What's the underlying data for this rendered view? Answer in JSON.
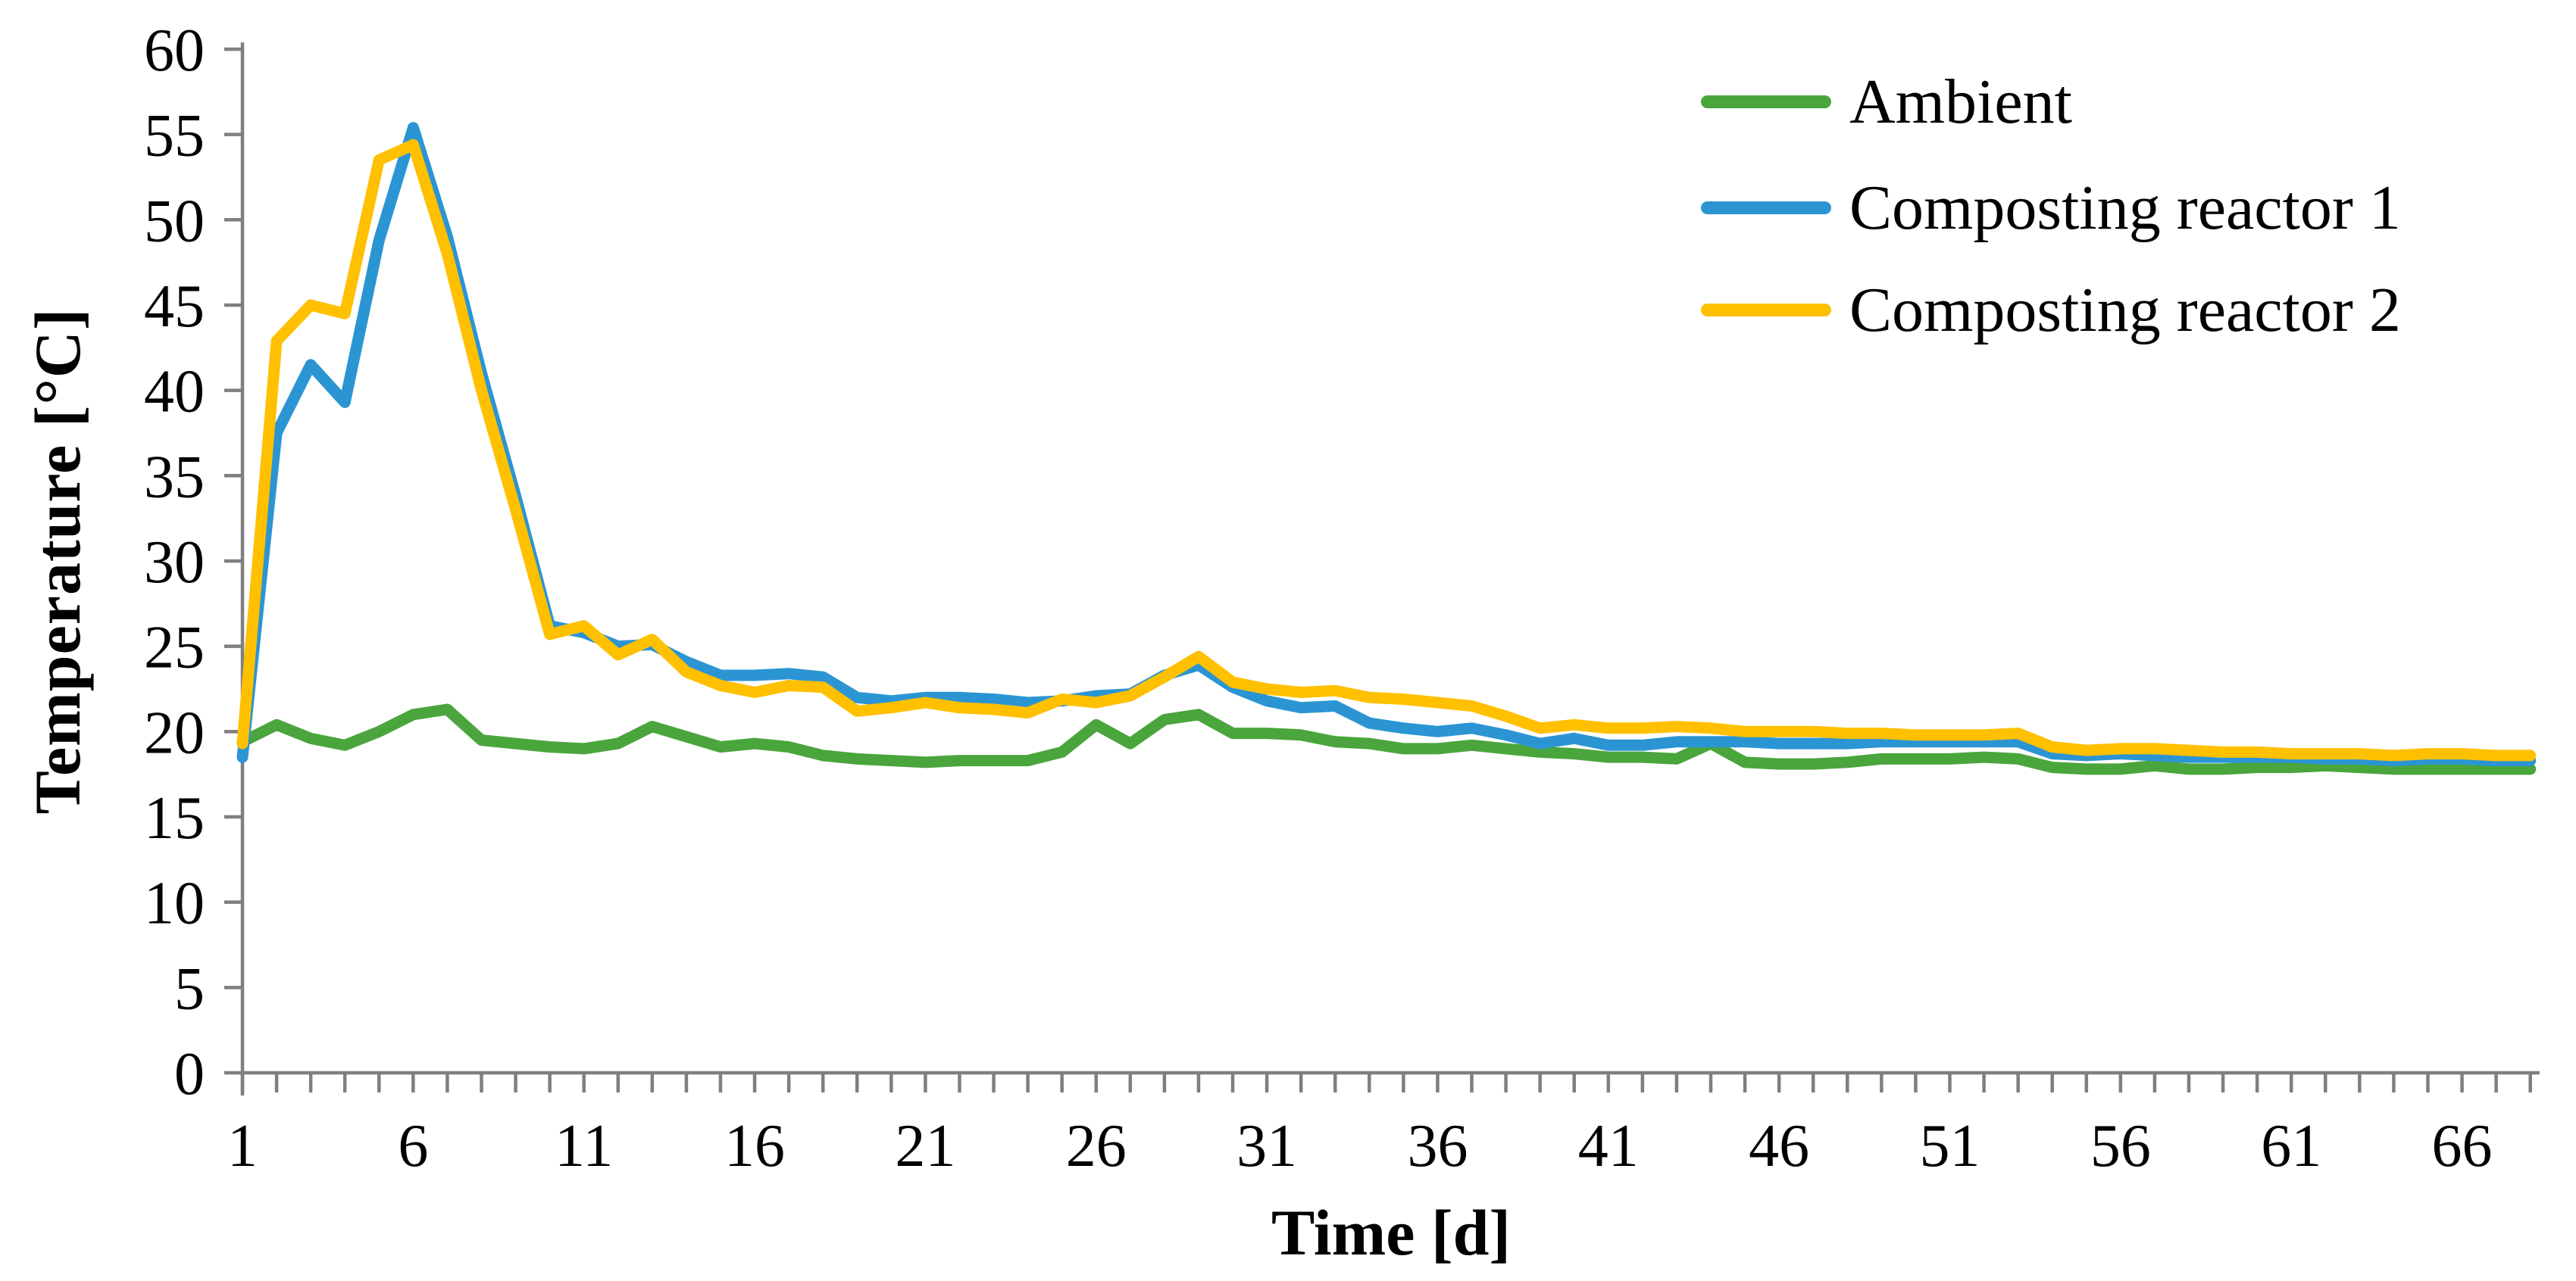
{
  "chart_data": {
    "type": "line",
    "title": "",
    "xlabel": "Time [d]",
    "ylabel": "Temperature [°C]",
    "x_axis": {
      "unit": "d",
      "start": 1,
      "end": 68,
      "minor_tick_step": 1,
      "labeled_ticks": [
        1,
        6,
        11,
        16,
        21,
        26,
        31,
        36,
        41,
        46,
        51,
        56,
        61,
        66
      ]
    },
    "y_axis": {
      "unit": "°C",
      "min": 0,
      "max": 60,
      "tick_step": 5,
      "ticks": [
        0,
        5,
        10,
        15,
        20,
        25,
        30,
        35,
        40,
        45,
        50,
        55,
        60
      ]
    },
    "grid": false,
    "legend_position": "top-right",
    "x": [
      1,
      2,
      3,
      4,
      5,
      6,
      7,
      8,
      9,
      10,
      11,
      12,
      13,
      14,
      15,
      16,
      17,
      18,
      19,
      20,
      21,
      22,
      23,
      24,
      25,
      26,
      27,
      28,
      29,
      30,
      31,
      32,
      33,
      34,
      35,
      36,
      37,
      38,
      39,
      40,
      41,
      42,
      43,
      44,
      45,
      46,
      47,
      48,
      49,
      50,
      51,
      52,
      53,
      54,
      55,
      56,
      57,
      58,
      59,
      60,
      61,
      62,
      63,
      64,
      65,
      66,
      67,
      68
    ],
    "series": [
      {
        "name": "Ambient",
        "color": "#4AA53C",
        "values": [
          19.4,
          20.4,
          19.6,
          19.2,
          20.0,
          21.0,
          21.3,
          19.5,
          19.3,
          19.1,
          19.0,
          19.3,
          20.3,
          19.7,
          19.1,
          19.3,
          19.1,
          18.6,
          18.4,
          18.3,
          18.2,
          18.3,
          18.3,
          18.3,
          18.8,
          20.4,
          19.3,
          20.7,
          21.0,
          19.9,
          19.9,
          19.8,
          19.4,
          19.3,
          19.0,
          19.0,
          19.2,
          19.0,
          18.8,
          18.7,
          18.5,
          18.5,
          18.4,
          19.3,
          18.2,
          18.1,
          18.1,
          18.2,
          18.4,
          18.4,
          18.4,
          18.5,
          18.4,
          17.9,
          17.8,
          17.8,
          18.0,
          17.8,
          17.8,
          17.9,
          17.9,
          18.0,
          17.9,
          17.8,
          17.8,
          17.8,
          17.8,
          17.8
        ]
      },
      {
        "name": "Composting reactor 1",
        "color": "#2B95D3",
        "values": [
          18.5,
          37.5,
          41.5,
          39.3,
          48.8,
          55.4,
          49.0,
          41.0,
          33.8,
          26.2,
          25.8,
          25.0,
          25.1,
          24.1,
          23.3,
          23.3,
          23.4,
          23.2,
          22.0,
          21.8,
          22.0,
          22.0,
          21.9,
          21.7,
          21.8,
          22.1,
          22.2,
          23.3,
          23.9,
          22.6,
          21.8,
          21.4,
          21.5,
          20.5,
          20.2,
          20.0,
          20.2,
          19.8,
          19.3,
          19.6,
          19.2,
          19.2,
          19.4,
          19.4,
          19.4,
          19.3,
          19.3,
          19.3,
          19.4,
          19.4,
          19.4,
          19.4,
          19.4,
          18.7,
          18.6,
          18.7,
          18.6,
          18.5,
          18.5,
          18.5,
          18.5,
          18.4,
          18.4,
          18.3,
          18.4,
          18.4,
          18.3,
          18.3
        ]
      },
      {
        "name": "Composting reactor 2",
        "color": "#FFC000",
        "values": [
          19.3,
          42.9,
          45.0,
          44.5,
          53.5,
          54.4,
          48.0,
          40.0,
          33.0,
          25.7,
          26.2,
          24.5,
          25.4,
          23.5,
          22.7,
          22.3,
          22.7,
          22.6,
          21.2,
          21.4,
          21.7,
          21.4,
          21.3,
          21.1,
          21.9,
          21.7,
          22.1,
          23.2,
          24.4,
          22.9,
          22.5,
          22.3,
          22.4,
          22.0,
          21.9,
          21.7,
          21.5,
          20.9,
          20.2,
          20.4,
          20.2,
          20.2,
          20.3,
          20.2,
          20.0,
          20.0,
          20.0,
          19.9,
          19.9,
          19.8,
          19.8,
          19.8,
          19.9,
          19.1,
          18.9,
          19.0,
          19.0,
          18.9,
          18.8,
          18.8,
          18.7,
          18.7,
          18.7,
          18.6,
          18.7,
          18.7,
          18.6,
          18.6
        ]
      }
    ]
  },
  "legend": {
    "items": [
      {
        "label": "Ambient",
        "color": "#4AA53C"
      },
      {
        "label": "Composting reactor 1",
        "color": "#2B95D3"
      },
      {
        "label": "Composting reactor 2",
        "color": "#FFC000"
      }
    ]
  },
  "axis_titles": {
    "y": "Temperature [°C]",
    "x": "Time [d]"
  }
}
